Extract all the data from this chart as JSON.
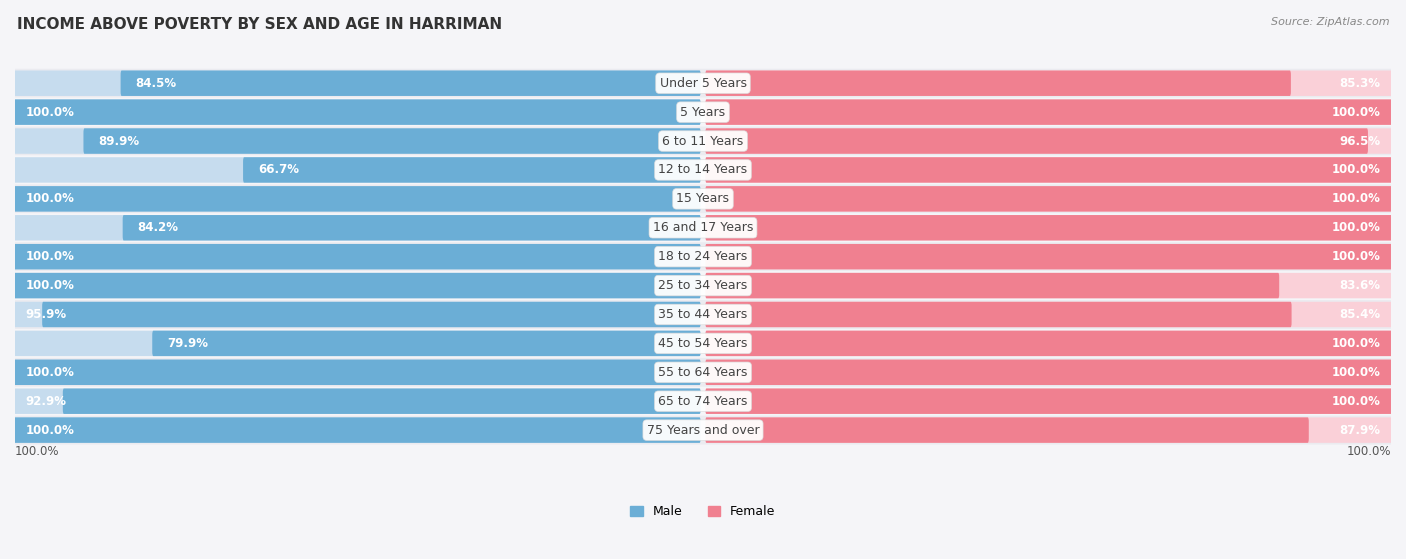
{
  "title": "INCOME ABOVE POVERTY BY SEX AND AGE IN HARRIMAN",
  "source": "Source: ZipAtlas.com",
  "categories": [
    "Under 5 Years",
    "5 Years",
    "6 to 11 Years",
    "12 to 14 Years",
    "15 Years",
    "16 and 17 Years",
    "18 to 24 Years",
    "25 to 34 Years",
    "35 to 44 Years",
    "45 to 54 Years",
    "55 to 64 Years",
    "65 to 74 Years",
    "75 Years and over"
  ],
  "male_values": [
    84.5,
    100.0,
    89.9,
    66.7,
    100.0,
    84.2,
    100.0,
    100.0,
    95.9,
    79.9,
    100.0,
    92.9,
    100.0
  ],
  "female_values": [
    85.3,
    100.0,
    96.5,
    100.0,
    100.0,
    100.0,
    100.0,
    83.6,
    85.4,
    100.0,
    100.0,
    100.0,
    87.9
  ],
  "male_color": "#6baed6",
  "female_color": "#f08090",
  "male_color_light": "#c6dcee",
  "female_color_light": "#fad0d8",
  "male_label": "Male",
  "female_label": "Female",
  "bar_height": 0.58,
  "row_bg_even": "#ebebf0",
  "row_bg_odd": "#f5f5f8",
  "max_value": 100.0,
  "title_fontsize": 11,
  "label_fontsize": 8.5,
  "cat_fontsize": 9,
  "legend_fontsize": 9,
  "source_fontsize": 8,
  "bottom_label": "100.0%"
}
